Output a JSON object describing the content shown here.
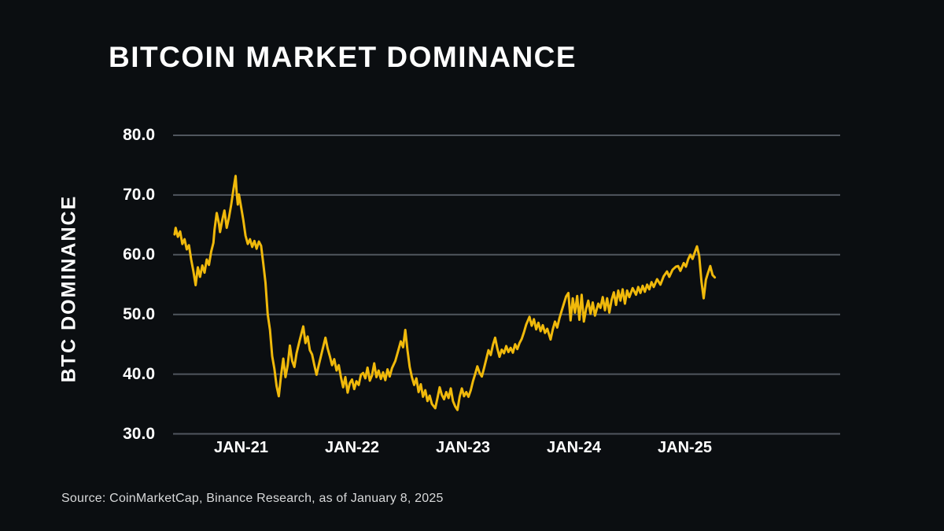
{
  "page": {
    "background": "#0b0e11",
    "title": "BITCOIN MARKET DOMINANCE",
    "source_note": "Source: CoinMarketCap, Binance Research, as of January 8, 2025"
  },
  "chart_data": {
    "type": "line",
    "title": "BITCOIN MARKET DOMINANCE",
    "xlabel": "",
    "ylabel": "BTC DOMINANCE",
    "unit": "%",
    "ylim": [
      30,
      80
    ],
    "y_ticks": [
      80,
      70,
      60,
      50,
      40,
      30
    ],
    "y_tick_labels": [
      "80.0",
      "70.0",
      "60.0",
      "50.0",
      "40.0",
      "30.0"
    ],
    "x_ticks": [
      2021,
      2022,
      2023,
      2024,
      2025
    ],
    "x_tick_labels": [
      "JAN-21",
      "JAN-22",
      "JAN-23",
      "JAN-24",
      "JAN-25"
    ],
    "grid": "horizontal",
    "legend": "none",
    "line_color": "#F0B90B",
    "grid_color": "#50565e",
    "text_color": "#ffffff",
    "series": [
      {
        "name": "BTC Dominance",
        "points": [
          [
            2020.4,
            63.4
          ],
          [
            2020.41,
            64.5
          ],
          [
            2020.43,
            63.0
          ],
          [
            2020.45,
            63.9
          ],
          [
            2020.47,
            61.8
          ],
          [
            2020.49,
            62.6
          ],
          [
            2020.51,
            60.9
          ],
          [
            2020.53,
            61.6
          ],
          [
            2020.55,
            59.2
          ],
          [
            2020.57,
            57.2
          ],
          [
            2020.59,
            54.9
          ],
          [
            2020.61,
            57.9
          ],
          [
            2020.63,
            56.3
          ],
          [
            2020.65,
            58.2
          ],
          [
            2020.67,
            57.0
          ],
          [
            2020.69,
            59.2
          ],
          [
            2020.71,
            58.3
          ],
          [
            2020.73,
            60.5
          ],
          [
            2020.75,
            62.0
          ],
          [
            2020.76,
            64.2
          ],
          [
            2020.78,
            67.0
          ],
          [
            2020.8,
            65.2
          ],
          [
            2020.81,
            63.8
          ],
          [
            2020.83,
            65.8
          ],
          [
            2020.85,
            67.4
          ],
          [
            2020.87,
            64.5
          ],
          [
            2020.89,
            66.2
          ],
          [
            2020.91,
            68.3
          ],
          [
            2020.93,
            70.8
          ],
          [
            2020.95,
            73.2
          ],
          [
            2020.96,
            70.3
          ],
          [
            2020.97,
            68.4
          ],
          [
            2020.98,
            70.1
          ],
          [
            2021.0,
            68.0
          ],
          [
            2021.02,
            65.8
          ],
          [
            2021.04,
            63.2
          ],
          [
            2021.06,
            61.8
          ],
          [
            2021.08,
            62.6
          ],
          [
            2021.1,
            61.3
          ],
          [
            2021.12,
            62.3
          ],
          [
            2021.14,
            61.0
          ],
          [
            2021.16,
            62.2
          ],
          [
            2021.18,
            61.5
          ],
          [
            2021.2,
            58.5
          ],
          [
            2021.22,
            55.3
          ],
          [
            2021.24,
            50.0
          ],
          [
            2021.26,
            47.4
          ],
          [
            2021.28,
            43.0
          ],
          [
            2021.3,
            40.9
          ],
          [
            2021.32,
            38.0
          ],
          [
            2021.34,
            36.3
          ],
          [
            2021.36,
            39.8
          ],
          [
            2021.38,
            42.6
          ],
          [
            2021.4,
            39.5
          ],
          [
            2021.42,
            41.5
          ],
          [
            2021.44,
            44.8
          ],
          [
            2021.46,
            42.2
          ],
          [
            2021.48,
            41.2
          ],
          [
            2021.5,
            43.5
          ],
          [
            2021.53,
            45.8
          ],
          [
            2021.56,
            48.0
          ],
          [
            2021.58,
            45.2
          ],
          [
            2021.6,
            46.3
          ],
          [
            2021.62,
            44.0
          ],
          [
            2021.64,
            43.3
          ],
          [
            2021.66,
            41.5
          ],
          [
            2021.68,
            39.9
          ],
          [
            2021.7,
            41.5
          ],
          [
            2021.73,
            43.8
          ],
          [
            2021.76,
            46.1
          ],
          [
            2021.78,
            44.3
          ],
          [
            2021.8,
            43.0
          ],
          [
            2021.82,
            41.5
          ],
          [
            2021.84,
            42.5
          ],
          [
            2021.86,
            40.6
          ],
          [
            2021.88,
            41.5
          ],
          [
            2021.9,
            39.5
          ],
          [
            2021.92,
            37.8
          ],
          [
            2021.94,
            39.5
          ],
          [
            2021.96,
            36.9
          ],
          [
            2021.98,
            38.5
          ],
          [
            2022.0,
            39.1
          ],
          [
            2022.02,
            37.5
          ],
          [
            2022.04,
            38.8
          ],
          [
            2022.06,
            38.2
          ],
          [
            2022.08,
            39.9
          ],
          [
            2022.1,
            40.2
          ],
          [
            2022.12,
            39.3
          ],
          [
            2022.14,
            41.1
          ],
          [
            2022.16,
            38.9
          ],
          [
            2022.18,
            39.8
          ],
          [
            2022.2,
            41.8
          ],
          [
            2022.22,
            39.5
          ],
          [
            2022.24,
            40.6
          ],
          [
            2022.26,
            39.2
          ],
          [
            2022.28,
            40.3
          ],
          [
            2022.3,
            39.0
          ],
          [
            2022.32,
            40.8
          ],
          [
            2022.34,
            39.6
          ],
          [
            2022.36,
            41.0
          ],
          [
            2022.39,
            42.2
          ],
          [
            2022.41,
            43.5
          ],
          [
            2022.44,
            45.5
          ],
          [
            2022.46,
            44.5
          ],
          [
            2022.48,
            47.4
          ],
          [
            2022.5,
            44.0
          ],
          [
            2022.52,
            41.2
          ],
          [
            2022.54,
            39.5
          ],
          [
            2022.56,
            38.2
          ],
          [
            2022.58,
            39.3
          ],
          [
            2022.6,
            37.0
          ],
          [
            2022.62,
            38.3
          ],
          [
            2022.64,
            36.2
          ],
          [
            2022.66,
            37.3
          ],
          [
            2022.68,
            35.5
          ],
          [
            2022.7,
            36.4
          ],
          [
            2022.72,
            35.0
          ],
          [
            2022.75,
            34.3
          ],
          [
            2022.77,
            36.0
          ],
          [
            2022.79,
            37.8
          ],
          [
            2022.81,
            36.5
          ],
          [
            2022.83,
            35.8
          ],
          [
            2022.85,
            37.0
          ],
          [
            2022.87,
            36.0
          ],
          [
            2022.89,
            37.6
          ],
          [
            2022.91,
            35.5
          ],
          [
            2022.93,
            34.6
          ],
          [
            2022.95,
            34.0
          ],
          [
            2022.97,
            36.2
          ],
          [
            2022.99,
            37.6
          ],
          [
            2023.01,
            36.3
          ],
          [
            2023.03,
            37.0
          ],
          [
            2023.05,
            36.2
          ],
          [
            2023.07,
            37.3
          ],
          [
            2023.09,
            38.8
          ],
          [
            2023.11,
            40.0
          ],
          [
            2023.13,
            41.3
          ],
          [
            2023.15,
            40.2
          ],
          [
            2023.17,
            39.6
          ],
          [
            2023.19,
            41.0
          ],
          [
            2023.21,
            42.5
          ],
          [
            2023.23,
            44.0
          ],
          [
            2023.25,
            43.2
          ],
          [
            2023.27,
            44.9
          ],
          [
            2023.29,
            46.1
          ],
          [
            2023.31,
            44.3
          ],
          [
            2023.33,
            42.9
          ],
          [
            2023.35,
            44.1
          ],
          [
            2023.37,
            43.5
          ],
          [
            2023.39,
            44.7
          ],
          [
            2023.41,
            43.7
          ],
          [
            2023.43,
            44.4
          ],
          [
            2023.45,
            43.6
          ],
          [
            2023.47,
            45.0
          ],
          [
            2023.49,
            44.2
          ],
          [
            2023.51,
            45.2
          ],
          [
            2023.53,
            45.9
          ],
          [
            2023.55,
            47.0
          ],
          [
            2023.57,
            48.3
          ],
          [
            2023.6,
            49.6
          ],
          [
            2023.62,
            48.1
          ],
          [
            2023.64,
            49.2
          ],
          [
            2023.66,
            47.5
          ],
          [
            2023.68,
            48.6
          ],
          [
            2023.7,
            47.2
          ],
          [
            2023.72,
            48.2
          ],
          [
            2023.74,
            46.9
          ],
          [
            2023.76,
            47.6
          ],
          [
            2023.79,
            45.8
          ],
          [
            2023.81,
            47.5
          ],
          [
            2023.83,
            48.8
          ],
          [
            2023.85,
            47.8
          ],
          [
            2023.87,
            49.4
          ],
          [
            2023.89,
            50.6
          ],
          [
            2023.91,
            51.8
          ],
          [
            2023.93,
            53.0
          ],
          [
            2023.95,
            53.6
          ],
          [
            2023.97,
            49.0
          ],
          [
            2023.99,
            52.7
          ],
          [
            2024.01,
            50.3
          ],
          [
            2024.03,
            53.1
          ],
          [
            2024.05,
            49.1
          ],
          [
            2024.07,
            53.3
          ],
          [
            2024.09,
            48.8
          ],
          [
            2024.11,
            50.9
          ],
          [
            2024.13,
            52.3
          ],
          [
            2024.15,
            50.1
          ],
          [
            2024.17,
            52.0
          ],
          [
            2024.19,
            49.8
          ],
          [
            2024.22,
            51.8
          ],
          [
            2024.24,
            51.1
          ],
          [
            2024.26,
            52.9
          ],
          [
            2024.28,
            50.7
          ],
          [
            2024.3,
            52.7
          ],
          [
            2024.32,
            50.3
          ],
          [
            2024.34,
            52.4
          ],
          [
            2024.36,
            53.7
          ],
          [
            2024.38,
            51.6
          ],
          [
            2024.4,
            54.0
          ],
          [
            2024.42,
            52.3
          ],
          [
            2024.44,
            54.2
          ],
          [
            2024.46,
            51.8
          ],
          [
            2024.48,
            54.0
          ],
          [
            2024.5,
            52.9
          ],
          [
            2024.53,
            54.4
          ],
          [
            2024.56,
            53.3
          ],
          [
            2024.58,
            54.6
          ],
          [
            2024.6,
            53.6
          ],
          [
            2024.62,
            54.8
          ],
          [
            2024.64,
            53.8
          ],
          [
            2024.66,
            55.0
          ],
          [
            2024.68,
            54.2
          ],
          [
            2024.7,
            55.4
          ],
          [
            2024.72,
            54.6
          ],
          [
            2024.75,
            55.9
          ],
          [
            2024.78,
            55.0
          ],
          [
            2024.81,
            56.4
          ],
          [
            2024.84,
            57.2
          ],
          [
            2024.86,
            56.3
          ],
          [
            2024.89,
            57.5
          ],
          [
            2024.92,
            58.0
          ],
          [
            2024.94,
            58.1
          ],
          [
            2024.96,
            57.3
          ],
          [
            2024.99,
            58.6
          ],
          [
            2025.01,
            58.0
          ],
          [
            2025.03,
            59.2
          ],
          [
            2025.05,
            60.0
          ],
          [
            2025.07,
            59.3
          ],
          [
            2025.09,
            60.4
          ],
          [
            2025.11,
            61.4
          ],
          [
            2025.13,
            59.8
          ],
          [
            2025.15,
            55.5
          ],
          [
            2025.17,
            52.7
          ],
          [
            2025.19,
            55.8
          ],
          [
            2025.21,
            57.0
          ],
          [
            2025.23,
            58.1
          ],
          [
            2025.25,
            56.6
          ],
          [
            2025.27,
            56.2
          ]
        ]
      }
    ]
  }
}
